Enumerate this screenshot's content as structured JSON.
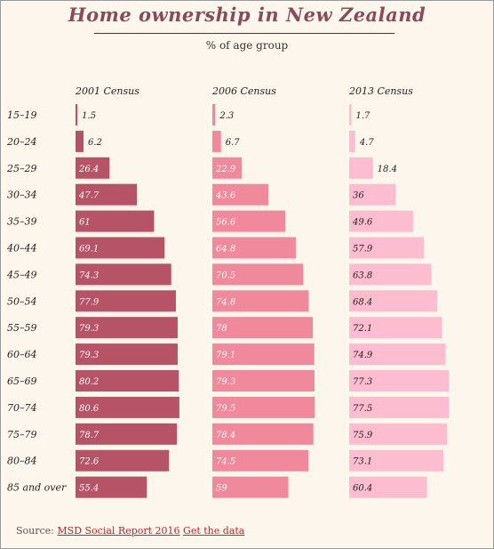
{
  "title": "Home ownership in New Zealand",
  "subtitle": "% of age group",
  "source": {
    "label": "Source:",
    "link1": "MSD Social Report 2016",
    "link2": "Get the data"
  },
  "chart_data": {
    "type": "bar",
    "orientation": "horizontal",
    "title": "Home ownership in New Zealand",
    "subtitle": "% of age group",
    "categories": [
      "15–19",
      "20–24",
      "25–29",
      "30–34",
      "35–39",
      "40–44",
      "45–49",
      "50–54",
      "55–59",
      "60–64",
      "65–69",
      "70–74",
      "75–79",
      "80–84",
      "85 and over"
    ],
    "series": [
      {
        "name": "2001 Census",
        "color": "#b65366",
        "values": [
          1.5,
          6.2,
          26.4,
          47.7,
          61,
          69.1,
          74.3,
          77.9,
          79.3,
          79.3,
          80.2,
          80.6,
          78.7,
          72.6,
          55.4
        ]
      },
      {
        "name": "2006 Census",
        "color": "#f0899b",
        "values": [
          2.3,
          6.7,
          22.9,
          43.6,
          56.6,
          64.8,
          70.5,
          74.8,
          78,
          79.1,
          79.3,
          79.5,
          78.4,
          74.5,
          59
        ]
      },
      {
        "name": "2013 Census",
        "color": "#fdbdd0",
        "values": [
          1.7,
          4.7,
          18.4,
          36,
          49.6,
          57.9,
          63.8,
          68.4,
          72.1,
          74.9,
          77.3,
          77.5,
          75.9,
          73.1,
          60.4
        ]
      }
    ],
    "xlim": [
      0,
      100
    ],
    "grid": false,
    "legend": "none"
  }
}
